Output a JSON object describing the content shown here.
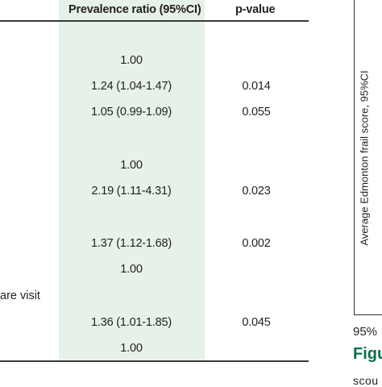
{
  "table": {
    "headers": {
      "prevalence": "Prevalence ratio (95%CI)",
      "pvalue": "p-value"
    },
    "label_fragment": "are visit",
    "rows": [
      {
        "pr": "1.00",
        "p": ""
      },
      {
        "pr": "1.24 (1.04-1.47)",
        "p": "0.014"
      },
      {
        "pr": "1.05 (0.99-1.09)",
        "p": "0.055"
      },
      {
        "pr": "1.00",
        "p": ""
      },
      {
        "pr": "2.19 (1.11-4.31)",
        "p": "0.023"
      },
      {
        "pr": "1.37 (1.12-1.68)",
        "p": "0.002"
      },
      {
        "pr": "1.00",
        "p": ""
      },
      {
        "pr": "1.36 (1.01-1.85)",
        "p": "0.045"
      },
      {
        "pr": "1.00",
        "p": ""
      }
    ]
  },
  "figure": {
    "ylabel": "Average Edmonton frail score, 95%CI",
    "below_text": "95%",
    "caption_start": "Figu",
    "next_line_start": "scou"
  },
  "colors": {
    "highlight": "#e6f1ea",
    "caption": "#0e6d4d",
    "rule": "#3a3a3a"
  }
}
